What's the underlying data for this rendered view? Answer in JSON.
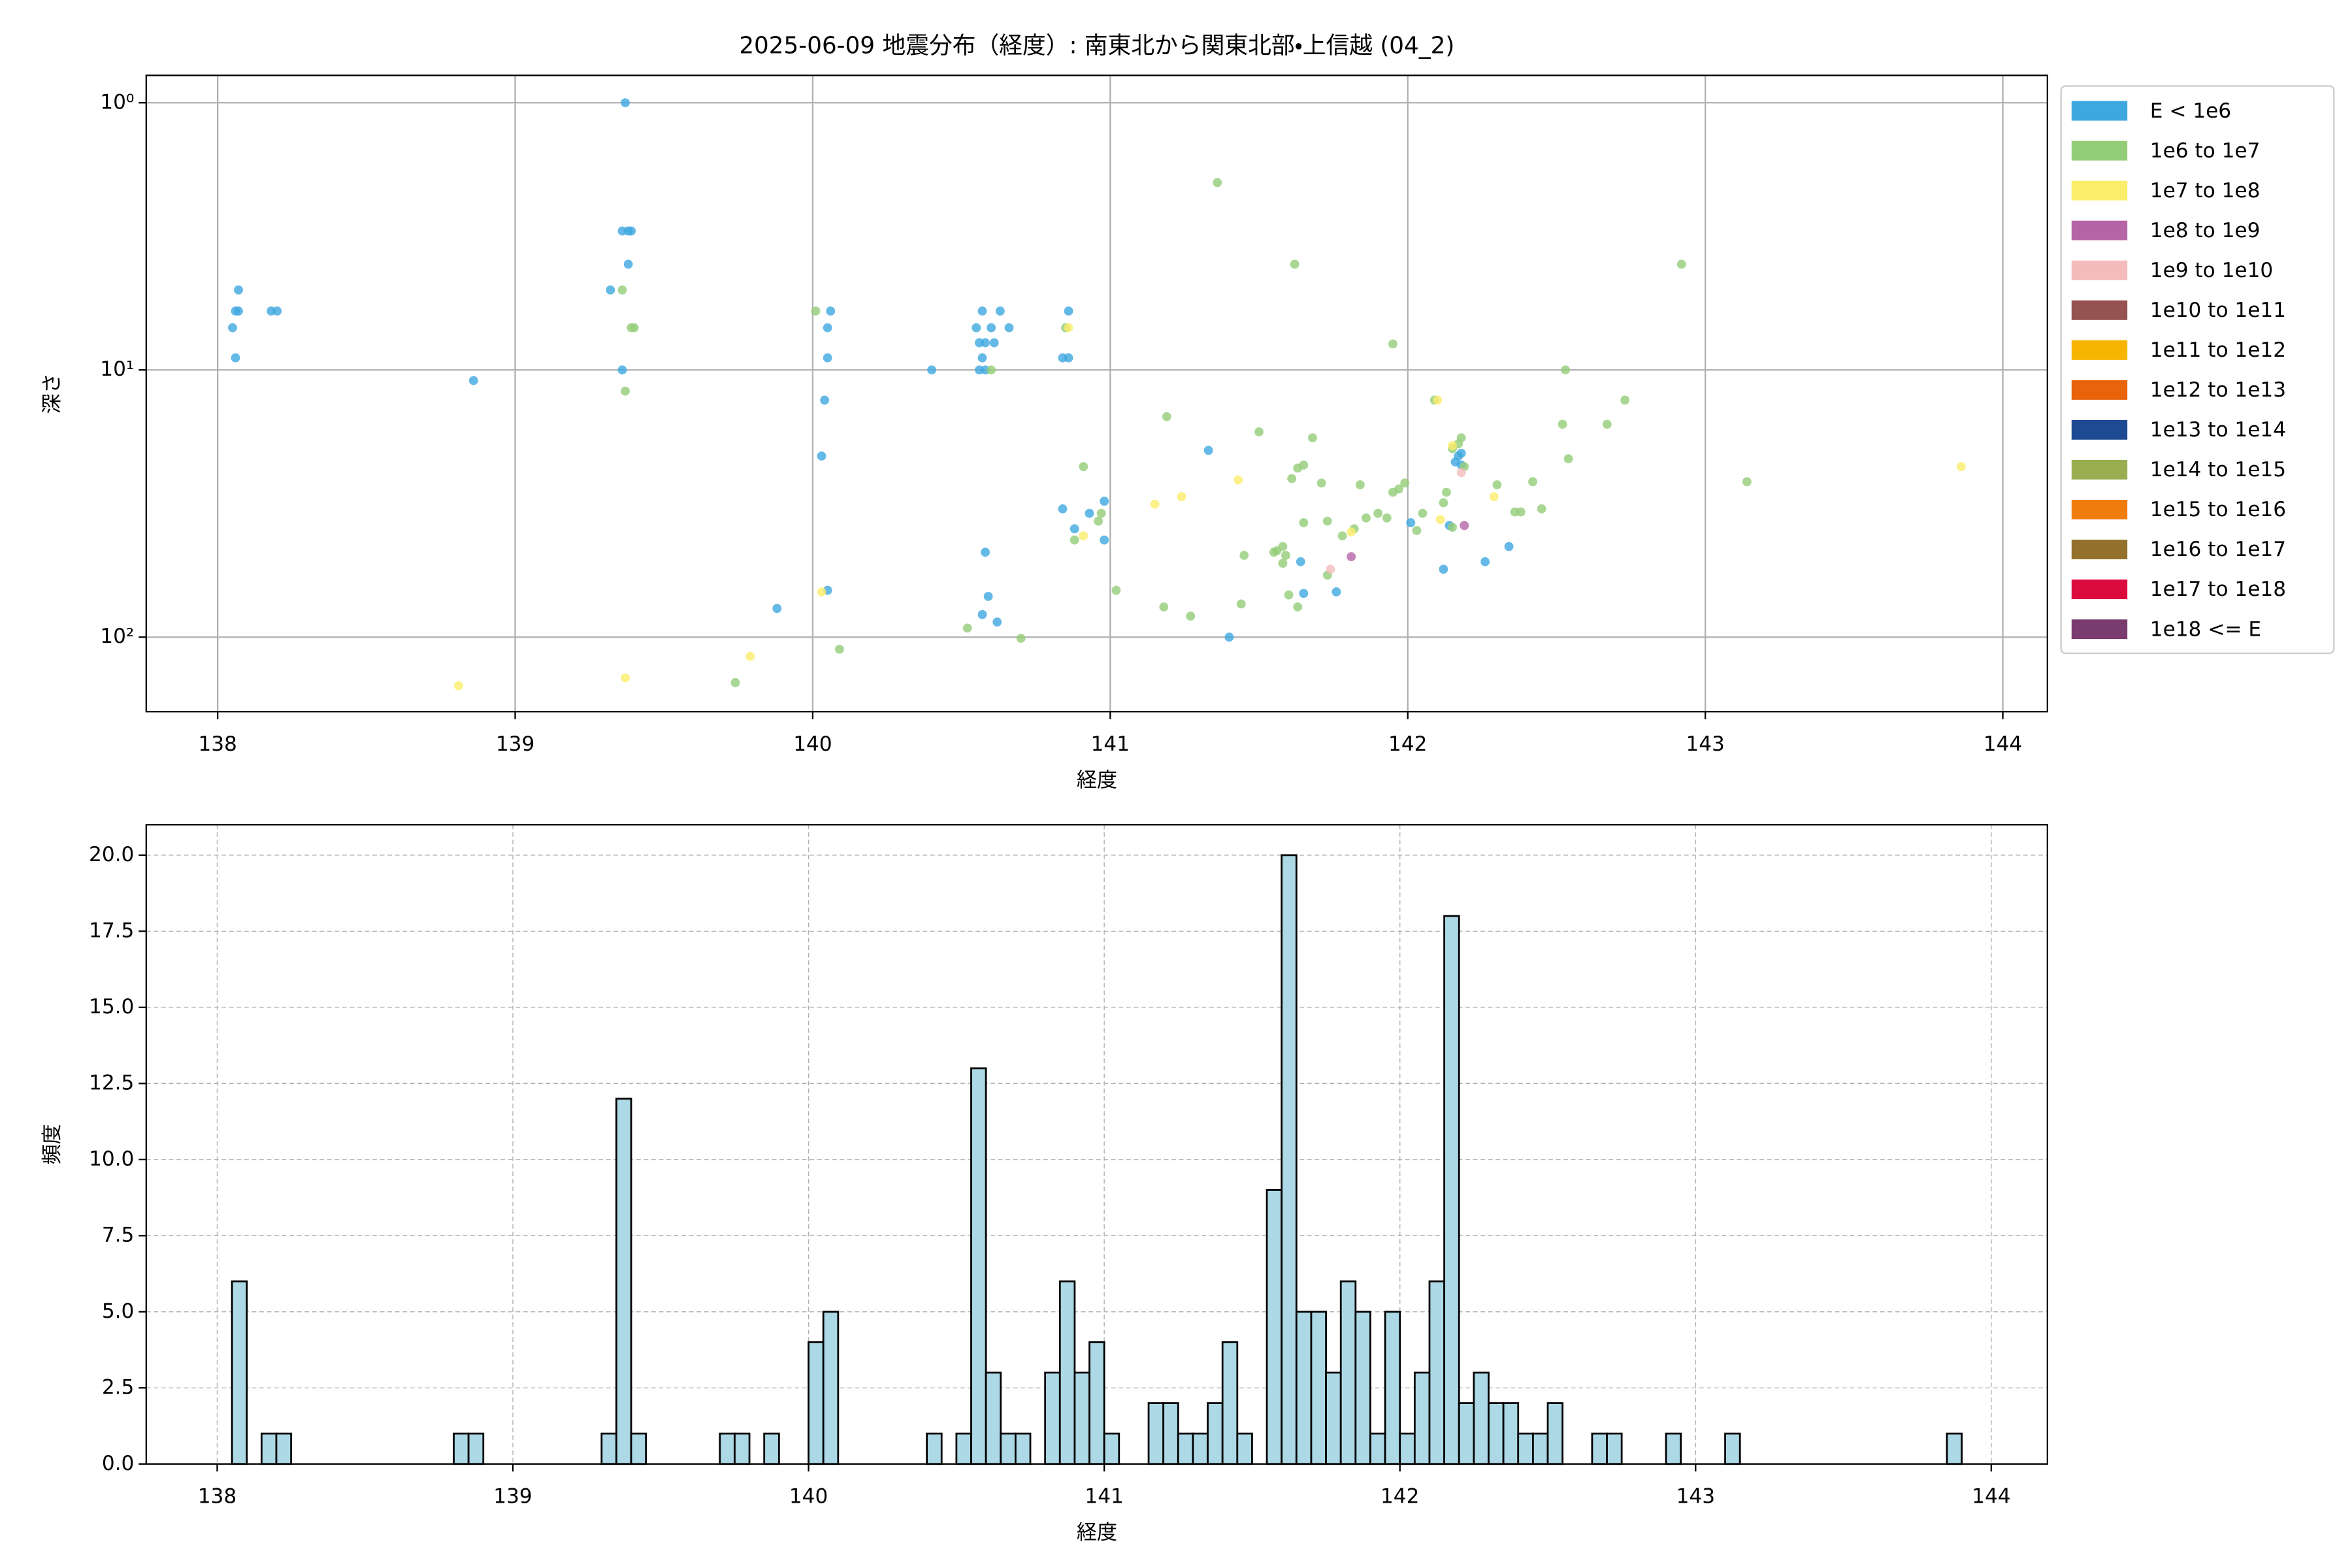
{
  "chart_data": [
    {
      "type": "scatter",
      "title": "2025-06-09 地震分布（経度）: 南東北から関東北部・上信越 (04_2)",
      "xlabel": "経度",
      "ylabel": "深さ",
      "xlim": [
        137.76,
        144.15
      ],
      "xticks": [
        138,
        139,
        140,
        141,
        142,
        143,
        144
      ],
      "yscale": "log",
      "ylim": [
        190,
        0.79
      ],
      "yticks": [
        {
          "value": 1,
          "label": "10⁰"
        },
        {
          "value": 10,
          "label": "10¹"
        },
        {
          "value": 100,
          "label": "10²"
        }
      ],
      "grid": true,
      "grid_linestyle": "solid",
      "legend": "outside upper right",
      "series": [
        {
          "name": "E < 1e6",
          "color": "#3fa7e0",
          "x": [
            138.07,
            138.06,
            138.07,
            138.05,
            138.06,
            138.18,
            138.2,
            139.37,
            139.36,
            139.38,
            139.39,
            139.32,
            139.38,
            139.36,
            138.86,
            140.06,
            140.05,
            140.05,
            140.04,
            140.03,
            140.05,
            139.88,
            140.4,
            140.57,
            140.63,
            140.55,
            140.6,
            140.66,
            140.56,
            140.58,
            140.61,
            140.57,
            140.56,
            140.58,
            140.86,
            140.84,
            140.86,
            140.84,
            140.88,
            140.93,
            140.98,
            140.98,
            140.58,
            140.59,
            140.57,
            140.62,
            141.33,
            141.4,
            141.65,
            141.76,
            141.64,
            142.01,
            142.12,
            142.26,
            142.16,
            142.17,
            142.18,
            142.18,
            142.34,
            142.14
          ],
          "values": [
            5.02,
            6.02,
            6.02,
            6.95,
            9.01,
            6.02,
            6.02,
            1.0,
            3.02,
            3.02,
            3.02,
            5.02,
            4.02,
            10.0,
            10.96,
            6.02,
            6.95,
            9.01,
            12.97,
            21.0,
            66.8,
            78.1,
            10.0,
            6.02,
            6.02,
            6.95,
            6.95,
            6.95,
            7.91,
            7.91,
            7.91,
            9.01,
            10.0,
            10.0,
            6.02,
            9.01,
            9.01,
            33.1,
            39.3,
            34.4,
            43.3,
            31.0,
            48.1,
            70.4,
            82.3,
            87.8,
            20.0,
            100,
            68.6,
            67.7,
            52.2,
            37.3,
            55.7,
            52.2,
            22.1,
            21.0,
            20.5,
            22.7,
            45.8,
            38.2
          ]
        },
        {
          "name": "1e6 to 1e7",
          "color": "#93cd78",
          "x": [
            141.36,
            141.62,
            141.95,
            142.92,
            142.53,
            141.19,
            141.5,
            140.91,
            141.68,
            141.63,
            141.61,
            141.65,
            140.88,
            140.97,
            140.96,
            141.02,
            141.18,
            141.27,
            141.44,
            141.45,
            141.55,
            141.58,
            141.63,
            141.6,
            140.52,
            140.7,
            140.09,
            139.74,
            139.37,
            139.36,
            139.4,
            139.39,
            140.01,
            140.6,
            140.85,
            142.09,
            142.52,
            142.67,
            142.73,
            143.14,
            142.54,
            142.42,
            142.3,
            142.36,
            142.38,
            142.45,
            142.18,
            142.17,
            142.15,
            142.19,
            142.13,
            142.12,
            142.15,
            141.71,
            141.73,
            141.84,
            141.86,
            141.9,
            141.93,
            141.95,
            141.97,
            141.99,
            142.05,
            142.03,
            141.78,
            141.73,
            141.82,
            141.65,
            141.58,
            141.56,
            141.59
          ],
          "values": [
            1.99,
            4.02,
            7.99,
            4.02,
            10.0,
            14.96,
            17.05,
            23.0,
            17.95,
            23.3,
            25.5,
            22.7,
            43.3,
            34.4,
            36.8,
            66.8,
            77.1,
            83.4,
            75.1,
            49.4,
            48.1,
            52.9,
            77.1,
            69.5,
            92.5,
            101,
            111,
            148,
            12.0,
            5.02,
            6.95,
            6.95,
            6.02,
            10.0,
            6.95,
            12.97,
            15.97,
            15.97,
            12.97,
            26.2,
            21.5,
            26.2,
            26.9,
            34.0,
            34.0,
            33.1,
            17.95,
            18.9,
            19.7,
            23.0,
            28.7,
            31.4,
            38.8,
            26.5,
            36.8,
            26.9,
            35.8,
            34.4,
            35.8,
            28.7,
            27.9,
            26.5,
            34.4,
            39.9,
            41.8,
            58.6,
            39.3,
            37.3,
            45.8,
            47.5,
            49.4
          ]
        },
        {
          "name": "1e7 to 1e8",
          "color": "#fbee6b",
          "x": [
            138.81,
            139.37,
            139.79,
            140.03,
            140.91,
            141.15,
            141.24,
            141.43,
            140.86,
            142.1,
            142.15,
            142.29,
            142.11,
            143.86,
            141.81
          ],
          "values": [
            152,
            142,
            118,
            67.7,
            41.8,
            31.8,
            29.8,
            25.8,
            6.95,
            12.97,
            19.2,
            29.8,
            36.3,
            23.0,
            40.4
          ]
        },
        {
          "name": "1e8 to 1e9",
          "color": "#b565a7",
          "x": [
            141.81,
            142.19
          ],
          "values": [
            50.0,
            38.2
          ]
        },
        {
          "name": "1e9 to 1e10",
          "color": "#f4bdbb",
          "x": [
            141.74,
            142.18
          ],
          "values": [
            55.7,
            24.2
          ]
        },
        {
          "name": "1e10 to 1e11",
          "color": "#955251",
          "x": [],
          "values": []
        },
        {
          "name": "1e11 to 1e12",
          "color": "#f7b500",
          "x": [],
          "values": []
        },
        {
          "name": "1e12 to 1e13",
          "color": "#e8630a",
          "x": [],
          "values": []
        },
        {
          "name": "1e13 to 1e14",
          "color": "#1d4a93",
          "x": [],
          "values": []
        },
        {
          "name": "1e14 to 1e15",
          "color": "#9aae51",
          "x": [],
          "values": []
        },
        {
          "name": "1e15 to 1e16",
          "color": "#f17c0e",
          "x": [],
          "values": []
        },
        {
          "name": "1e16 to 1e17",
          "color": "#93702c",
          "x": [],
          "values": []
        },
        {
          "name": "1e17 to 1e18",
          "color": "#dc0b3d",
          "x": [],
          "values": []
        },
        {
          "name": "1e18 <= E",
          "color": "#7a3b6e",
          "x": [],
          "values": []
        }
      ]
    },
    {
      "type": "histogram",
      "xlabel": "経度",
      "ylabel": "頻度",
      "xlim": [
        137.76,
        144.19
      ],
      "xticks": [
        138,
        139,
        140,
        141,
        142,
        143,
        144
      ],
      "ylim": [
        0,
        21
      ],
      "yticks": [
        {
          "value": 0,
          "label": "0.0"
        },
        {
          "value": 2.5,
          "label": "2.5"
        },
        {
          "value": 5,
          "label": "5.0"
        },
        {
          "value": 7.5,
          "label": "7.5"
        },
        {
          "value": 10,
          "label": "10.0"
        },
        {
          "value": 12.5,
          "label": "12.5"
        },
        {
          "value": 15,
          "label": "15.0"
        },
        {
          "value": 17.5,
          "label": "17.5"
        },
        {
          "value": 20,
          "label": "20.0"
        }
      ],
      "grid": true,
      "grid_linestyle": "dashed",
      "color": "#add8e6",
      "edgecolor": "#000000",
      "bins": [
        138.05,
        138.1,
        138.15,
        138.2,
        138.25,
        138.3,
        138.35,
        138.4,
        138.45,
        138.5,
        138.55,
        138.6,
        138.65,
        138.7,
        138.75,
        138.8,
        138.85,
        138.9,
        138.95,
        139,
        139.05,
        139.1,
        139.15,
        139.2,
        139.25,
        139.3,
        139.35,
        139.4,
        139.45,
        139.5,
        139.55,
        139.6,
        139.65,
        139.7,
        139.75,
        139.8,
        139.85,
        139.9,
        139.95,
        140,
        140.05,
        140.1,
        140.15,
        140.2,
        140.25,
        140.3,
        140.35,
        140.4,
        140.45,
        140.5,
        140.55,
        140.6,
        140.65,
        140.7,
        140.75,
        140.8,
        140.85,
        140.9,
        140.95,
        141,
        141.05,
        141.1,
        141.15,
        141.2,
        141.25,
        141.3,
        141.35,
        141.4,
        141.45,
        141.5,
        141.55,
        141.6,
        141.65,
        141.7,
        141.75,
        141.8,
        141.85,
        141.9,
        141.95,
        142,
        142.05,
        142.1,
        142.15,
        142.2,
        142.25,
        142.3,
        142.35,
        142.4,
        142.45,
        142.5,
        142.55,
        142.6,
        142.65,
        142.7,
        142.75,
        142.8,
        142.85,
        142.9,
        142.95,
        143,
        143.05,
        143.1,
        143.15,
        143.2,
        143.25,
        143.3,
        143.35,
        143.4,
        143.45,
        143.5,
        143.55,
        143.6,
        143.65,
        143.7,
        143.75,
        143.8,
        143.85,
        143.9
      ],
      "counts": [
        6,
        0,
        1,
        1,
        0,
        0,
        0,
        0,
        0,
        0,
        0,
        0,
        0,
        0,
        0,
        1,
        1,
        0,
        0,
        0,
        0,
        0,
        0,
        0,
        0,
        1,
        12,
        1,
        0,
        0,
        0,
        0,
        0,
        1,
        1,
        0,
        1,
        0,
        0,
        4,
        5,
        0,
        0,
        0,
        0,
        0,
        0,
        1,
        0,
        1,
        13,
        3,
        1,
        1,
        0,
        3,
        6,
        3,
        4,
        1,
        0,
        0,
        2,
        2,
        1,
        1,
        2,
        4,
        1,
        0,
        9,
        20,
        5,
        5,
        3,
        6,
        5,
        1,
        5,
        1,
        3,
        6,
        18,
        2,
        3,
        2,
        2,
        1,
        1,
        2,
        0,
        0,
        1,
        1,
        0,
        0,
        0,
        1,
        0,
        0,
        0,
        1,
        0,
        0,
        0,
        0,
        0,
        0,
        0,
        0,
        0,
        0,
        0,
        0,
        0,
        0,
        1
      ]
    }
  ]
}
